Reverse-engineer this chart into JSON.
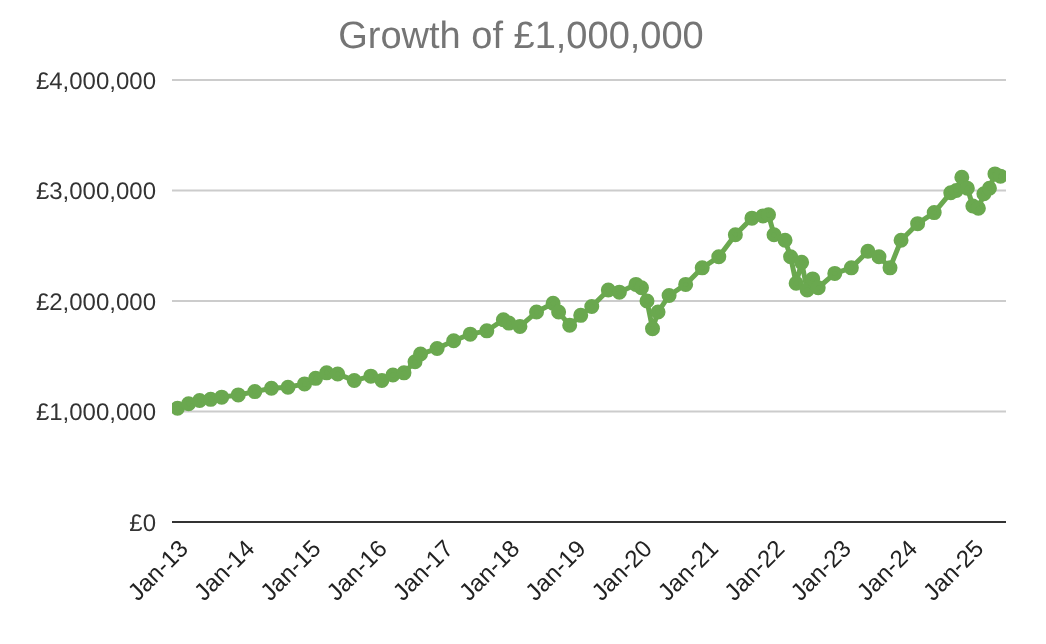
{
  "chart_data": {
    "type": "line",
    "title": "Growth of £1,000,000",
    "x": [
      "2013-01",
      "2013-03",
      "2013-05",
      "2013-07",
      "2013-09",
      "2013-12",
      "2014-03",
      "2014-06",
      "2014-09",
      "2014-12",
      "2015-02",
      "2015-04",
      "2015-06",
      "2015-09",
      "2015-12",
      "2016-02",
      "2016-04",
      "2016-06",
      "2016-08",
      "2016-09",
      "2016-12",
      "2017-03",
      "2017-06",
      "2017-09",
      "2017-12",
      "2018-01",
      "2018-03",
      "2018-06",
      "2018-09",
      "2018-10",
      "2018-12",
      "2019-02",
      "2019-04",
      "2019-07",
      "2019-09",
      "2019-12",
      "2020-01",
      "2020-02",
      "2020-03",
      "2020-04",
      "2020-06",
      "2020-09",
      "2020-12",
      "2021-03",
      "2021-06",
      "2021-09",
      "2021-11",
      "2021-12",
      "2022-01",
      "2022-03",
      "2022-04",
      "2022-05",
      "2022-06",
      "2022-07",
      "2022-08",
      "2022-09",
      "2022-12",
      "2023-03",
      "2023-06",
      "2023-08",
      "2023-10",
      "2023-12",
      "2024-03",
      "2024-06",
      "2024-09",
      "2024-10",
      "2024-11",
      "2024-12",
      "2025-01",
      "2025-02",
      "2025-03",
      "2025-04",
      "2025-05",
      "2025-06"
    ],
    "series": [
      {
        "color": "#6aa84f",
        "values": [
          1030000,
          1070000,
          1100000,
          1110000,
          1130000,
          1150000,
          1180000,
          1210000,
          1220000,
          1250000,
          1300000,
          1350000,
          1340000,
          1280000,
          1320000,
          1280000,
          1330000,
          1350000,
          1450000,
          1520000,
          1570000,
          1640000,
          1700000,
          1730000,
          1830000,
          1800000,
          1770000,
          1900000,
          1980000,
          1900000,
          1780000,
          1870000,
          1950000,
          2100000,
          2080000,
          2150000,
          2120000,
          2000000,
          1750000,
          1900000,
          2050000,
          2150000,
          2300000,
          2400000,
          2600000,
          2750000,
          2770000,
          2780000,
          2600000,
          2550000,
          2400000,
          2160000,
          2350000,
          2100000,
          2200000,
          2120000,
          2250000,
          2300000,
          2450000,
          2400000,
          2300000,
          2550000,
          2700000,
          2800000,
          2980000,
          3000000,
          3120000,
          3020000,
          2860000,
          2840000,
          2970000,
          3020000,
          3150000,
          3130000
        ]
      }
    ],
    "xlim": [
      "2012-12",
      "2025-07"
    ],
    "xticks": [
      {
        "value": "2013-01",
        "label": "Jan-13"
      },
      {
        "value": "2014-01",
        "label": "Jan-14"
      },
      {
        "value": "2015-01",
        "label": "Jan-15"
      },
      {
        "value": "2016-01",
        "label": "Jan-16"
      },
      {
        "value": "2017-01",
        "label": "Jan-17"
      },
      {
        "value": "2018-01",
        "label": "Jan-18"
      },
      {
        "value": "2019-01",
        "label": "Jan-19"
      },
      {
        "value": "2020-01",
        "label": "Jan-20"
      },
      {
        "value": "2021-01",
        "label": "Jan-21"
      },
      {
        "value": "2022-01",
        "label": "Jan-22"
      },
      {
        "value": "2023-01",
        "label": "Jan-23"
      },
      {
        "value": "2024-01",
        "label": "Jan-24"
      },
      {
        "value": "2025-01",
        "label": "Jan-25"
      }
    ],
    "ylim": [
      0,
      4000000
    ],
    "yticks": [
      {
        "value": 0,
        "label": "£0"
      },
      {
        "value": 1000000,
        "label": "£1,000,000"
      },
      {
        "value": 2000000,
        "label": "£2,000,000"
      },
      {
        "value": 3000000,
        "label": "£3,000,000"
      },
      {
        "value": 4000000,
        "label": "£4,000,000"
      }
    ],
    "grid": "y",
    "marker": "circle",
    "legend": false
  }
}
